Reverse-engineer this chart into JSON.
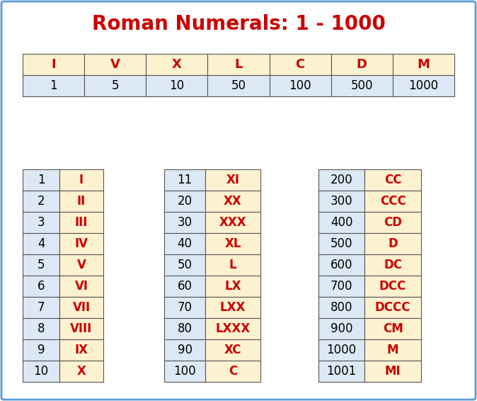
{
  "title": "Roman Numerals: 1 - 1000",
  "title_color": "#cc0000",
  "title_fontsize": 20,
  "bg_color": "#ffffff",
  "border_color": "#5b9bd5",
  "header_row": [
    "I",
    "V",
    "X",
    "L",
    "C",
    "D",
    "M"
  ],
  "value_row": [
    "1",
    "5",
    "10",
    "50",
    "100",
    "500",
    "1000"
  ],
  "header_bg": "#fdf2d0",
  "value_bg": "#dce9f5",
  "red_color": "#cc0000",
  "black_color": "#000000",
  "table1_numbers": [
    "1",
    "2",
    "3",
    "4",
    "5",
    "6",
    "7",
    "8",
    "9",
    "10"
  ],
  "table1_roman": [
    "I",
    "II",
    "III",
    "IV",
    "V",
    "VI",
    "VII",
    "VIII",
    "IX",
    "X"
  ],
  "table2_numbers": [
    "11",
    "20",
    "30",
    "40",
    "50",
    "60",
    "70",
    "80",
    "90",
    "100"
  ],
  "table2_roman": [
    "XI",
    "XX",
    "XXX",
    "XL",
    "L",
    "LX",
    "LXX",
    "LXXX",
    "XC",
    "C"
  ],
  "table3_numbers": [
    "200",
    "300",
    "400",
    "500",
    "600",
    "700",
    "800",
    "900",
    "1000",
    "1001"
  ],
  "table3_roman": [
    "CC",
    "CCC",
    "CD",
    "D",
    "DC",
    "DCC",
    "DCCC",
    "CM",
    "M",
    "MI"
  ],
  "cell_fontsize": 12,
  "header_fontsize": 13
}
